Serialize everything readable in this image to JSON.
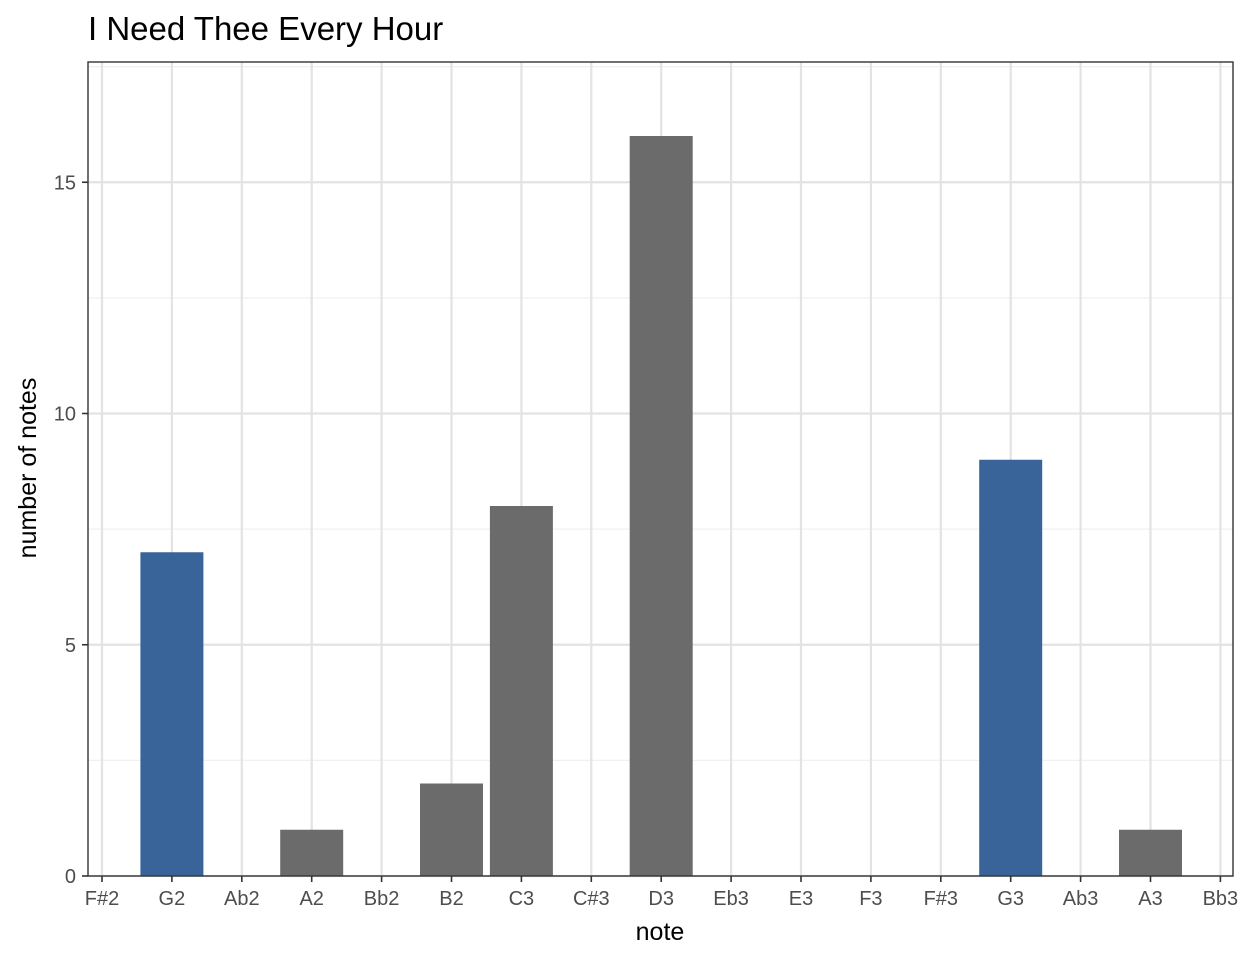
{
  "chart_data": {
    "type": "bar",
    "title": "I Need Thee Every Hour",
    "xlabel": "note",
    "ylabel": "number of notes",
    "categories": [
      "F#2",
      "G2",
      "Ab2",
      "A2",
      "Bb2",
      "B2",
      "C3",
      "C#3",
      "D3",
      "Eb3",
      "E3",
      "F3",
      "F#3",
      "G3",
      "Ab3",
      "A3",
      "Bb3"
    ],
    "values": [
      0,
      7,
      0,
      1,
      0,
      2,
      8,
      0,
      16,
      0,
      0,
      0,
      0,
      9,
      0,
      1,
      0
    ],
    "highlighted": [
      "G2",
      "G3"
    ],
    "yticks": [
      0,
      5,
      10,
      15
    ],
    "ylim": [
      0,
      17.6
    ],
    "grid": true,
    "colors": {
      "highlight": "#386499",
      "default": "#6b6b6b",
      "grid_major": "#e3e3e3",
      "grid_minor": "#f0f0f0",
      "panel_border": "#333333"
    }
  }
}
